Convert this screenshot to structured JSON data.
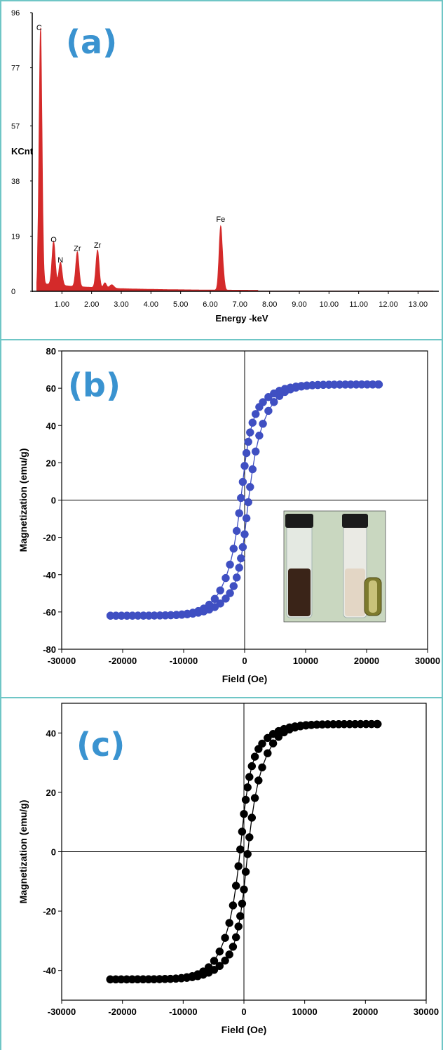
{
  "panels": {
    "a": {
      "label": "(a)"
    },
    "b": {
      "label": "(b)"
    },
    "c": {
      "label": "(c)"
    }
  },
  "colors": {
    "frame": "#6fc6c6",
    "label": "#3a93d0",
    "eds": "#d42a2a",
    "series_b": "#3f4fc2",
    "series_c": "#000000"
  },
  "chart_data": [
    {
      "type": "area",
      "title": "",
      "xlabel": "Energy -keV",
      "ylabel": "KCnt",
      "xlim": [
        0,
        13.7
      ],
      "ylim": [
        0,
        96
      ],
      "yticks": [
        "0",
        "19",
        "38",
        "57",
        "77",
        "96"
      ],
      "ytick_values": [
        0,
        19,
        38,
        57,
        77,
        96
      ],
      "xticks": [
        "1.00",
        "2.00",
        "3.00",
        "4.00",
        "5.00",
        "6.00",
        "7.00",
        "8.00",
        "9.00",
        "10.00",
        "11.00",
        "12.00",
        "13.00"
      ],
      "peaks": [
        {
          "label": "C",
          "x": 0.28,
          "y": 88
        },
        {
          "label": "O",
          "x": 0.72,
          "y": 15
        },
        {
          "label": "N",
          "x": 0.95,
          "y": 8
        },
        {
          "label": "Zr",
          "x": 1.52,
          "y": 12
        },
        {
          "label": "Zr",
          "x": 2.2,
          "y": 13
        },
        {
          "label": "Fe",
          "x": 6.35,
          "y": 22
        }
      ],
      "grid": false
    },
    {
      "type": "scatter",
      "xlabel": "Field (Oe)",
      "ylabel": "Magnetization (emu/g)",
      "xlim": [
        -30000,
        30000
      ],
      "ylim": [
        -80,
        80
      ],
      "xticks": [
        "-30000",
        "-20000",
        "-10000",
        "0",
        "10000",
        "20000",
        "30000"
      ],
      "yticks": [
        "80",
        "60",
        "40",
        "20",
        "0",
        "-20",
        "-40",
        "-60",
        "-80"
      ],
      "saturation": 62,
      "coercivity": 250,
      "remanence": 21,
      "hysteresis_width": 1800,
      "field_range": [
        -22000,
        22000
      ],
      "has_inset_photo": true,
      "grid": false
    },
    {
      "type": "scatter",
      "xlabel": "Field (Oe)",
      "ylabel": "Magnetization (emu/g)",
      "xlim": [
        -30000,
        30000
      ],
      "ylim": [
        -50,
        50
      ],
      "xticks": [
        "-30000",
        "-20000",
        "-10000",
        "0",
        "10000",
        "20000",
        "30000"
      ],
      "yticks": [
        "40",
        "20",
        "0",
        "-20",
        "-40"
      ],
      "saturation": 43,
      "coercivity": 250,
      "remanence": 15,
      "hysteresis_width": 1800,
      "field_range": [
        -22000,
        22000
      ],
      "has_inset_photo": false,
      "grid": false
    }
  ]
}
